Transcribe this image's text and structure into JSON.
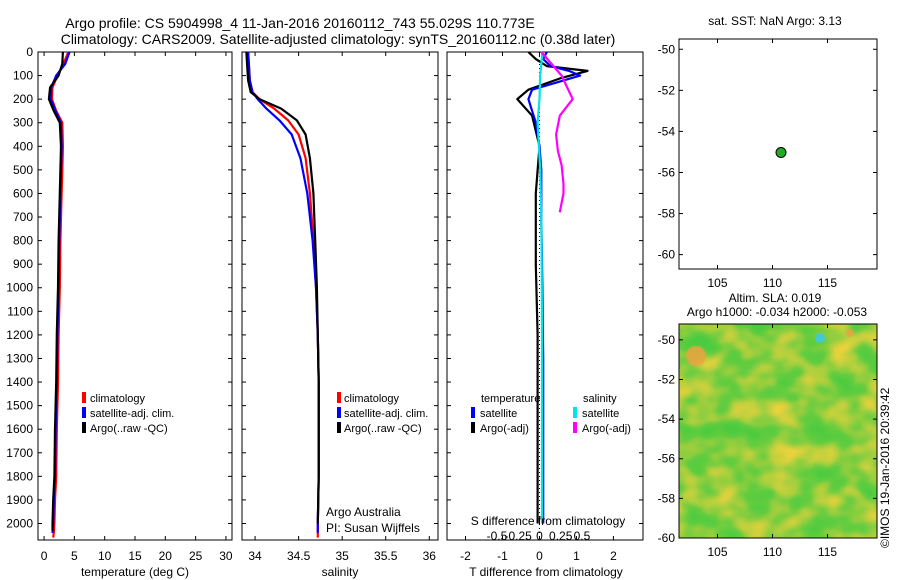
{
  "header": {
    "line1": "Argo profile: CS 5904998_4 11-Jan-2016 20160112_743 55.029S 110.773E",
    "line2": "Climatology: CARS2009. Satellite-adjusted climatology: synTS_20160112.nc (0.38d later)"
  },
  "stamp": "©IMOS 19-Jan-2016 20:39:42",
  "colors": {
    "climatology": "#ff0000",
    "satellite": "#0000ff",
    "argo": "#000000",
    "sat_s": "#00e5e5",
    "argo_s": "#ff00ff",
    "dot": "#22aa22"
  },
  "depth_ticks": [
    "0",
    "100",
    "200",
    "300",
    "400",
    "500",
    "600",
    "700",
    "800",
    "900",
    "1000",
    "1100",
    "1200",
    "1300",
    "1400",
    "1500",
    "1600",
    "1700",
    "1800",
    "1900",
    "2000"
  ],
  "temp_panel": {
    "xlabel": "temperature (deg C)",
    "xticks": [
      "0",
      "5",
      "10",
      "15",
      "20",
      "25",
      "30"
    ],
    "legend": [
      "climatology",
      "satellite-adj. clim.",
      "Argo(..raw -QC)"
    ]
  },
  "sal_panel": {
    "xlabel": "salinity",
    "xticks": [
      "34",
      "34.5",
      "35",
      "35.5",
      "36"
    ],
    "legend": [
      "climatology",
      "satellite-adj. clim.",
      "Argo(..raw -QC)"
    ],
    "note1": "Argo Australia",
    "note2": "PI: Susan Wijffels"
  },
  "diff_panel": {
    "xlabel": "T difference from climatology",
    "xticks": [
      "-2",
      "-1",
      "0",
      "1",
      "2"
    ],
    "s_label": "S difference from climatology",
    "s_ticks": [
      "-0.5",
      "-0.25",
      "0",
      "0.25",
      "0.5"
    ],
    "legend_t_title": "temperature",
    "legend_s_title": "salinity",
    "legend_items": [
      "satellite",
      "Argo(-adj)",
      "satellite",
      "Argo(-adj)"
    ]
  },
  "sst_panel": {
    "title": "sat. SST: NaN Argo: 3.13",
    "xticks": [
      "105",
      "110",
      "115"
    ],
    "yticks": [
      "-50",
      "-52",
      "-54",
      "-56",
      "-58",
      "-60"
    ]
  },
  "sla_panel": {
    "title1": "Altim. SLA: 0.019",
    "title2": "Argo h1000: -0.034 h2000: -0.053",
    "xticks": [
      "105",
      "110",
      "115"
    ],
    "yticks": [
      "-50",
      "-52",
      "-54",
      "-56",
      "-58",
      "-60"
    ]
  },
  "chart_data": [
    {
      "type": "line",
      "xlabel": "temperature (deg C)",
      "ylabel": "",
      "xlim": [
        -1,
        31
      ],
      "ylim": [
        0,
        2070
      ],
      "series": [
        {
          "name": "climatology",
          "x": [
            4.0,
            3.2,
            2.2,
            1.4,
            1.3,
            2.0,
            3.0,
            3.1,
            3.0,
            2.9,
            2.7,
            2.6,
            2.4,
            2.3,
            2.1,
            2.0,
            1.8,
            1.7,
            1.6,
            1.5
          ],
          "y": [
            0,
            50,
            100,
            150,
            200,
            250,
            300,
            400,
            500,
            600,
            800,
            1000,
            1200,
            1400,
            1600,
            1800,
            1900,
            2000,
            2040,
            2060
          ]
        },
        {
          "name": "satellite-adj. clim.",
          "x": [
            4.2,
            3.5,
            2.0,
            1.2,
            1.1,
            1.9,
            2.8,
            2.9,
            2.8,
            2.7,
            2.5,
            2.4,
            2.2,
            2.1,
            1.9,
            1.8,
            1.6,
            1.5,
            1.4
          ],
          "y": [
            0,
            50,
            100,
            150,
            200,
            250,
            300,
            400,
            500,
            600,
            800,
            1000,
            1200,
            1400,
            1600,
            1800,
            1900,
            2000,
            2040
          ]
        },
        {
          "name": "Argo(..raw -QC)",
          "x": [
            3.1,
            3.0,
            2.4,
            1.0,
            0.8,
            1.6,
            2.6,
            2.8,
            2.7,
            2.6,
            2.4,
            2.3,
            2.1,
            2.0,
            1.8,
            1.7,
            1.5,
            1.4,
            1.4
          ],
          "y": [
            0,
            50,
            100,
            150,
            200,
            250,
            300,
            400,
            500,
            600,
            800,
            1000,
            1200,
            1400,
            1600,
            1800,
            1900,
            2000,
            2030
          ]
        }
      ]
    },
    {
      "type": "line",
      "xlabel": "salinity",
      "ylabel": "",
      "xlim": [
        33.85,
        36.1
      ],
      "ylim": [
        0,
        2070
      ],
      "series": [
        {
          "name": "climatology",
          "x": [
            33.92,
            33.93,
            33.94,
            33.97,
            34.05,
            34.22,
            34.38,
            34.5,
            34.58,
            34.63,
            34.67,
            34.7,
            34.72,
            34.73,
            34.73,
            34.73,
            34.72,
            34.72
          ],
          "y": [
            0,
            60,
            120,
            170,
            200,
            240,
            290,
            350,
            450,
            600,
            800,
            1000,
            1200,
            1400,
            1600,
            1800,
            2000,
            2060
          ]
        },
        {
          "name": "satellite-adj. clim.",
          "x": [
            33.92,
            33.93,
            33.94,
            33.97,
            34.03,
            34.13,
            34.28,
            34.42,
            34.52,
            34.6,
            34.66,
            34.7,
            34.72,
            34.73,
            34.73,
            34.73,
            34.72,
            34.72
          ],
          "y": [
            0,
            60,
            120,
            170,
            200,
            240,
            290,
            350,
            450,
            600,
            800,
            1000,
            1200,
            1400,
            1600,
            1800,
            2000,
            2040
          ]
        },
        {
          "name": "Argo(..raw -QC)",
          "x": [
            33.9,
            33.91,
            33.92,
            33.95,
            34.05,
            34.3,
            34.48,
            34.58,
            34.63,
            34.67,
            34.69,
            34.71,
            34.72,
            34.73,
            34.73,
            34.73,
            34.72
          ],
          "y": [
            0,
            60,
            120,
            170,
            200,
            240,
            290,
            350,
            450,
            600,
            800,
            1000,
            1200,
            1400,
            1600,
            1800,
            2000
          ]
        }
      ]
    },
    {
      "type": "line",
      "xlabel": "T difference from climatology",
      "ylabel": "",
      "xlim": [
        -2.5,
        2.8
      ],
      "ylim": [
        0,
        2070
      ],
      "series": [
        {
          "name": "temperature satellite",
          "x": [
            0.2,
            0.1,
            0.3,
            0.8,
            1.1,
            -0.2,
            -0.3,
            -0.1,
            0.0,
            0.05,
            0.05,
            0.08,
            0.1,
            0.1,
            0.1,
            0.1
          ],
          "y": [
            0,
            30,
            60,
            80,
            100,
            160,
            200,
            300,
            400,
            500,
            700,
            1000,
            1300,
            1600,
            1900,
            2000
          ]
        },
        {
          "name": "temperature Argo(-adj)",
          "x": [
            -0.3,
            -0.1,
            0.2,
            1.3,
            0.6,
            -0.3,
            -0.6,
            -0.2,
            0.0,
            -0.1,
            -0.1,
            -0.05,
            -0.05,
            -0.05,
            -0.05
          ],
          "y": [
            0,
            30,
            60,
            80,
            110,
            160,
            200,
            270,
            400,
            600,
            900,
            1200,
            1500,
            1800,
            2000
          ]
        },
        {
          "name": "salinity satellite",
          "x": [
            0.08,
            0.02,
            0.0,
            -0.05,
            0.02,
            0.05,
            0.06,
            0.07,
            0.07,
            0.07,
            0.07
          ],
          "y": [
            0,
            100,
            200,
            300,
            500,
            700,
            900,
            1200,
            1500,
            1800,
            2000
          ]
        },
        {
          "name": "salinity Argo(-adj)",
          "x": [
            0.05,
            0.6,
            0.9,
            0.55,
            0.45,
            0.5,
            0.6,
            0.65,
            0.65,
            0.6,
            0.55
          ],
          "y": [
            0,
            100,
            200,
            270,
            350,
            420,
            480,
            560,
            600,
            640,
            680
          ]
        }
      ]
    },
    {
      "type": "scatter",
      "title": "sat. SST: NaN Argo: 3.13",
      "xlim": [
        101.5,
        119.5
      ],
      "ylim": [
        -60.7,
        -49.5
      ],
      "series": [
        {
          "x": [
            110.773
          ],
          "y": [
            -55.029
          ]
        }
      ]
    },
    {
      "type": "heatmap",
      "title": "Altim. SLA: 0.019",
      "xlim": [
        101.5,
        119.5
      ],
      "ylim": [
        -60.0,
        -49.2
      ]
    }
  ]
}
